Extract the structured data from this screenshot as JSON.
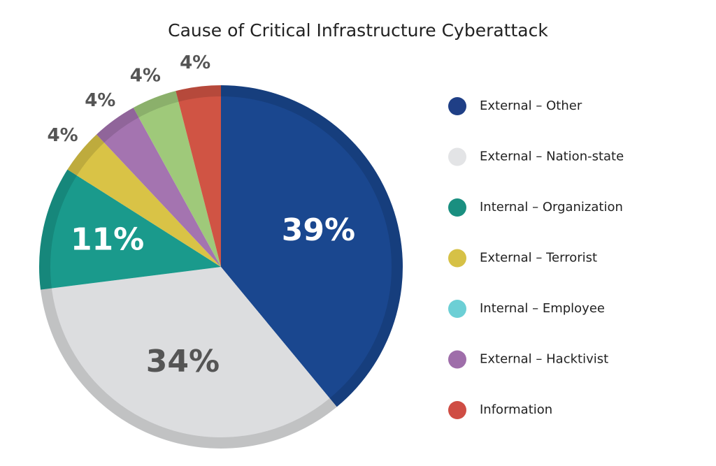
{
  "chart_data": {
    "type": "pie",
    "title": "Cause of Critical Infrastructure Cyberattack",
    "values": [
      39,
      34,
      11,
      4,
      4,
      4,
      4
    ],
    "value_labels": [
      "39%",
      "34%",
      "11%",
      "4%",
      "4%",
      "4%",
      "4%"
    ],
    "colors": [
      "#1a478f",
      "#dcdddf",
      "#1a9a8c",
      "#d9c346",
      "#a474b0",
      "#9fc97a",
      "#d05444"
    ],
    "label_colors": [
      "#ffffff",
      "#555555",
      "#ffffff",
      "#555555",
      "#555555",
      "#555555",
      "#555555"
    ],
    "legend": [
      {
        "name": "External – Other",
        "color": "#1f3f86"
      },
      {
        "name": "External – Nation-state",
        "color": "#e3e4e6"
      },
      {
        "name": "Internal – Organization",
        "color": "#1a8f80"
      },
      {
        "name": "External – Terrorist",
        "color": "#d6c146"
      },
      {
        "name": "Internal – Employee",
        "color": "#6ccfd5"
      },
      {
        "name": "External – Hacktivist",
        "color": "#9f6eaa"
      },
      {
        "name": "Information",
        "color": "#cf4d44"
      }
    ]
  }
}
